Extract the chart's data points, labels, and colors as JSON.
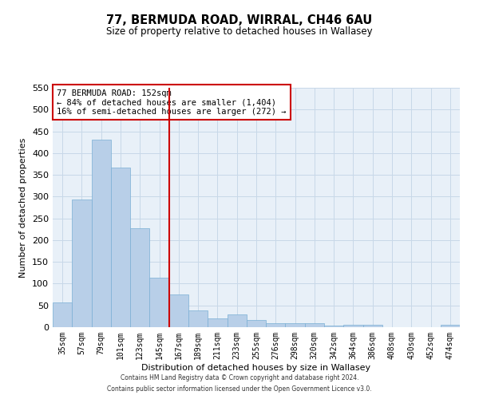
{
  "title": "77, BERMUDA ROAD, WIRRAL, CH46 6AU",
  "subtitle": "Size of property relative to detached houses in Wallasey",
  "xlabel": "Distribution of detached houses by size in Wallasey",
  "ylabel": "Number of detached properties",
  "categories": [
    "35sqm",
    "57sqm",
    "79sqm",
    "101sqm",
    "123sqm",
    "145sqm",
    "167sqm",
    "189sqm",
    "211sqm",
    "233sqm",
    "255sqm",
    "276sqm",
    "298sqm",
    "320sqm",
    "342sqm",
    "364sqm",
    "386sqm",
    "408sqm",
    "430sqm",
    "452sqm",
    "474sqm"
  ],
  "values": [
    57,
    293,
    430,
    367,
    228,
    113,
    75,
    38,
    20,
    29,
    17,
    9,
    10,
    10,
    3,
    5,
    5,
    0,
    0,
    0,
    5
  ],
  "bar_color": "#b8cfe8",
  "bar_edge_color": "#7aafd4",
  "bar_width": 1.0,
  "ylim": [
    0,
    550
  ],
  "yticks": [
    0,
    50,
    100,
    150,
    200,
    250,
    300,
    350,
    400,
    450,
    500,
    550
  ],
  "vline_x_idx": 5.5,
  "vline_color": "#cc0000",
  "annotation_title": "77 BERMUDA ROAD: 152sqm",
  "annotation_line1": "← 84% of detached houses are smaller (1,404)",
  "annotation_line2": "16% of semi-detached houses are larger (272) →",
  "annotation_box_color": "#ffffff",
  "annotation_box_edge": "#cc0000",
  "background_color": "#ffffff",
  "plot_bg_color": "#e8f0f8",
  "grid_color": "#c8d8e8",
  "footer_line1": "Contains HM Land Registry data © Crown copyright and database right 2024.",
  "footer_line2": "Contains public sector information licensed under the Open Government Licence v3.0."
}
